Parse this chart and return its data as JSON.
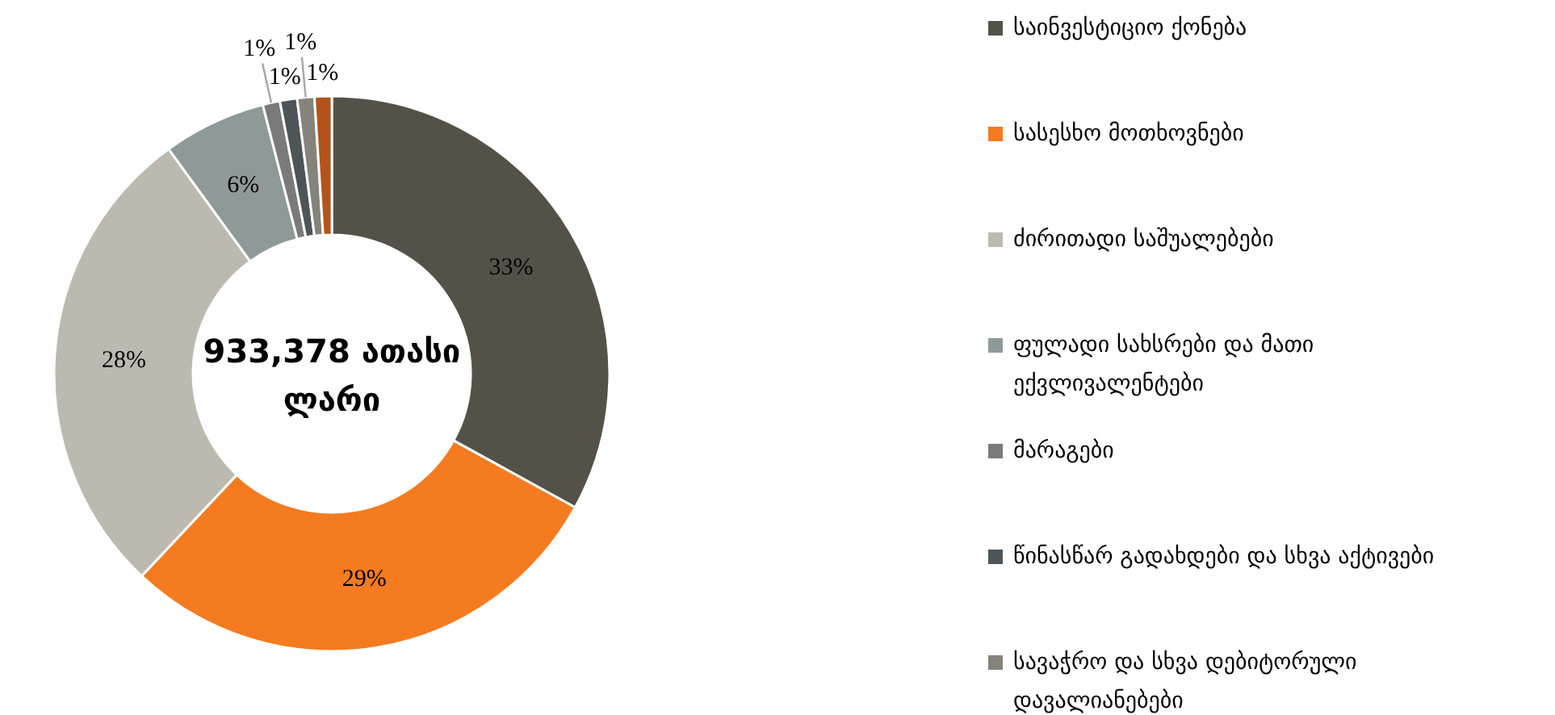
{
  "chart_data": {
    "type": "donut",
    "categories": [
      "საინვესტიციო ქონება",
      "სასესხო მოთხოვნები",
      "ძირითადი საშუალებები",
      "ფულადი სახსრები და მათი ექვლივალენტები",
      "მარაგები",
      "წინასწარ გადახდები და სხვა აქტივები",
      "სავაჭრო და სხვა დებიტორული დავალიანებები",
      null
    ],
    "values": [
      33,
      29,
      28,
      6,
      1,
      1,
      1,
      1
    ],
    "colors": [
      "#545248",
      "#f47b20",
      "#bcb9b0",
      "#8f9a98",
      "#7a7a7a",
      "#4d5558",
      "#85847a",
      "#b5541a"
    ],
    "value_labels": [
      "33%",
      "29%",
      "28%",
      "6%",
      "1%",
      "1%",
      "1%",
      "1%"
    ],
    "annotations": [
      "933,378 ათასი ლარი"
    ],
    "legend": "right"
  }
}
